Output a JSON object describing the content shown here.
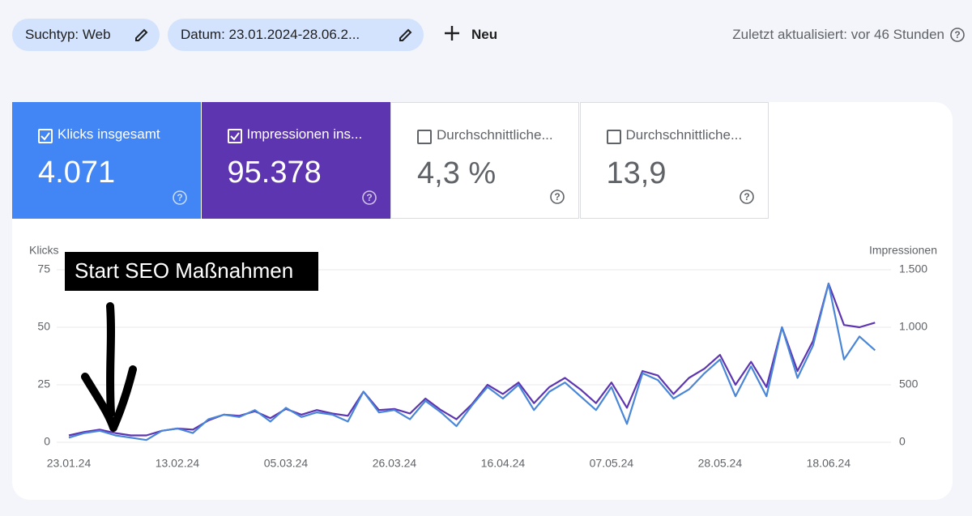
{
  "filters": [
    {
      "label": "Suchtyp: Web"
    },
    {
      "label": "Datum: 23.01.2024-28.06.2..."
    }
  ],
  "new_button": "Neu",
  "last_updated": "Zuletzt aktualisiert: vor 46 Stunden",
  "cards": [
    {
      "label": "Klicks insgesamt",
      "value": "4.071",
      "checked": true,
      "color": "#4285f4"
    },
    {
      "label": "Impressionen ins...",
      "value": "95.378",
      "checked": true,
      "color": "#5e35b1"
    },
    {
      "label": "Durchschnittliche...",
      "value": "4,3 %",
      "checked": false,
      "color": "#ffffff"
    },
    {
      "label": "Durchschnittliche...",
      "value": "13,9",
      "checked": false,
      "color": "#ffffff"
    }
  ],
  "chart_data": {
    "type": "line",
    "annotation": "Start SEO Maßnahmen",
    "y_label": "Klicks",
    "y2_label": "Impressionen",
    "categories": [
      "23.01.24",
      null,
      null,
      null,
      null,
      null,
      null,
      "13.02.24",
      null,
      null,
      null,
      null,
      null,
      null,
      "05.03.24",
      null,
      null,
      null,
      null,
      null,
      null,
      "26.03.24",
      null,
      null,
      null,
      null,
      null,
      null,
      "16.04.24",
      null,
      null,
      null,
      null,
      null,
      null,
      "07.05.24",
      null,
      null,
      null,
      null,
      null,
      null,
      "28.05.24",
      null,
      null,
      null,
      null,
      null,
      null,
      "18.06.24",
      null,
      null,
      null
    ],
    "series": [
      {
        "name": "Klicks",
        "color": "#4a86d8",
        "values": [
          2,
          4,
          5,
          3,
          2,
          1,
          5,
          6,
          4,
          10,
          12,
          11,
          14,
          9,
          15,
          11,
          13,
          12,
          9,
          22,
          13,
          14,
          10,
          18,
          13,
          7,
          16,
          24,
          19,
          25,
          14,
          22,
          26,
          20,
          14,
          24,
          8,
          30,
          27,
          19,
          23,
          30,
          36,
          20,
          33,
          20,
          50,
          28,
          42,
          69,
          36,
          46,
          40
        ]
      },
      {
        "name": "Impressionen",
        "color": "#5e35b1",
        "axis": "y2",
        "values": [
          60,
          90,
          110,
          80,
          60,
          60,
          100,
          120,
          110,
          190,
          240,
          230,
          270,
          210,
          290,
          240,
          280,
          250,
          230,
          440,
          280,
          290,
          250,
          380,
          280,
          200,
          330,
          500,
          420,
          520,
          340,
          480,
          560,
          460,
          340,
          520,
          300,
          620,
          580,
          420,
          560,
          640,
          760,
          500,
          700,
          480,
          1000,
          620,
          880,
          1380,
          1020,
          1000,
          1040
        ]
      }
    ],
    "ylim": [
      0,
      75
    ],
    "yticks": [
      0,
      25,
      50,
      75
    ],
    "y2lim": [
      0,
      1500
    ],
    "y2ticks": [
      0,
      500,
      {
        "value": 1000,
        "label": "1.000"
      },
      {
        "value": 1500,
        "label": "1.500"
      }
    ],
    "grid": true
  }
}
